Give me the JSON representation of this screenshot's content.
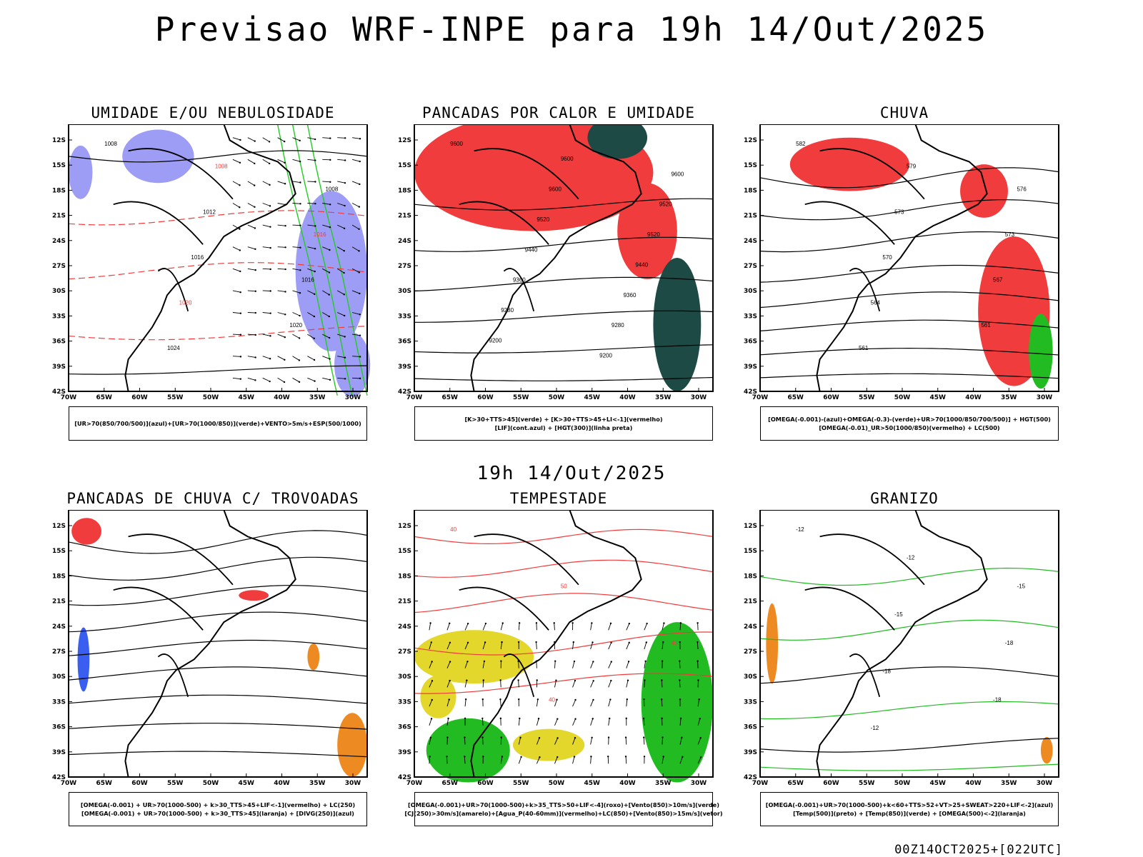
{
  "header": {
    "title": "Previsao WRF-INPE  para 19h 14/Out/2025",
    "subtitle": "19h 14/Out/2025",
    "run_stamp": "00Z14OCT2025+[022UTC]"
  },
  "axes": {
    "lat_labels": [
      "12S",
      "15S",
      "18S",
      "21S",
      "24S",
      "27S",
      "30S",
      "33S",
      "36S",
      "39S",
      "42S"
    ],
    "lon_labels": [
      "70W",
      "65W",
      "60W",
      "55W",
      "50W",
      "45W",
      "40W",
      "35W",
      "30W"
    ]
  },
  "panels": [
    {
      "id": "umidade",
      "title": "UMIDADE E/OU NEBULOSIDADE",
      "legend": [
        "[UR>70(850/700/500)](azul)+[UR>70(1000/850)](verde)+VENTO>5m/s+ESP(500/1000)"
      ],
      "contour_labels": [
        "1008",
        "1008",
        "1008",
        "1012",
        "1016",
        "1016",
        "1016",
        "1020",
        "1020",
        "1024"
      ]
    },
    {
      "id": "pancadas-calor",
      "title": "PANCADAS POR CALOR E UMIDADE",
      "legend": [
        "[K>30+TTS>45](verde) + [K>30+TTS>45+LI<-1](vermelho)",
        "[LIF](cont.azul) + [HGT(300)](linha preta)"
      ],
      "contour_labels": [
        "9600",
        "9600",
        "9600",
        "9600",
        "9520",
        "9520",
        "9520",
        "9440",
        "9440",
        "9360",
        "9360",
        "9280",
        "9280",
        "9200",
        "9200"
      ]
    },
    {
      "id": "chuva",
      "title": "CHUVA",
      "legend": [
        "[OMEGA(-0.001)-(azul)+OMEGA(-0.3)-(verde)+UR>70(1000/850/700/500)] + HGT(500)",
        "[OMEGA(-0.01)_UR>50(1000/850)(vermelho) + LC(500)"
      ],
      "contour_labels": [
        "582",
        "579",
        "576",
        "573",
        "573",
        "570",
        "567",
        "564",
        "561",
        "561"
      ]
    },
    {
      "id": "pancadas-trovoadas",
      "title": "PANCADAS DE CHUVA C/ TROVOADAS",
      "legend": [
        "[OMEGA(-0.001) + UR>70(1000-500) + k>30_TTS>45+LIF<-1](vermelho) + LC(250)",
        "[OMEGA(-0.001) + UR>70(1000-500) + k>30_TTS>45](laranja) + [DIVG(250)](azul)"
      ],
      "contour_labels": []
    },
    {
      "id": "tempestade",
      "title": "TEMPESTADE",
      "legend": [
        "[OMEGA(-0.001)+UR>70(1000-500)+k>35_TTS>50+LIF<-4](roxo)+[Vento(850)>10m/s](verde)",
        "[CJ(250)>30m/s](amarelo)+[Agua_P(40-60mm)](vermelho)+LC(850)+[Vento(850)>15m/s](vetor)"
      ],
      "contour_labels": [
        "40",
        "50",
        "40",
        "40"
      ]
    },
    {
      "id": "granizo",
      "title": "GRANIZO",
      "legend": [
        "[OMEGA(-0.001)+UR>70(1000-500)+k<60+TTS>52+VT>25+SWEAT>220+LIF<-2](azul)",
        "[Temp(500)](preto) + [Temp(850)](verde) + [OMEGA(500)<-2](laranja)"
      ],
      "contour_labels": [
        "-12",
        "-12",
        "-15",
        "-15",
        "-18",
        "-18",
        "-18",
        "-12"
      ]
    }
  ],
  "colors": {
    "blue_field": "#9d9df5",
    "green_line": "#22cc22",
    "red_field": "#f03c3c",
    "dark_teal": "#1e4a46",
    "yellow_field": "#e3d72c",
    "orange_field": "#ee8a22",
    "green_field": "#22bb22"
  }
}
